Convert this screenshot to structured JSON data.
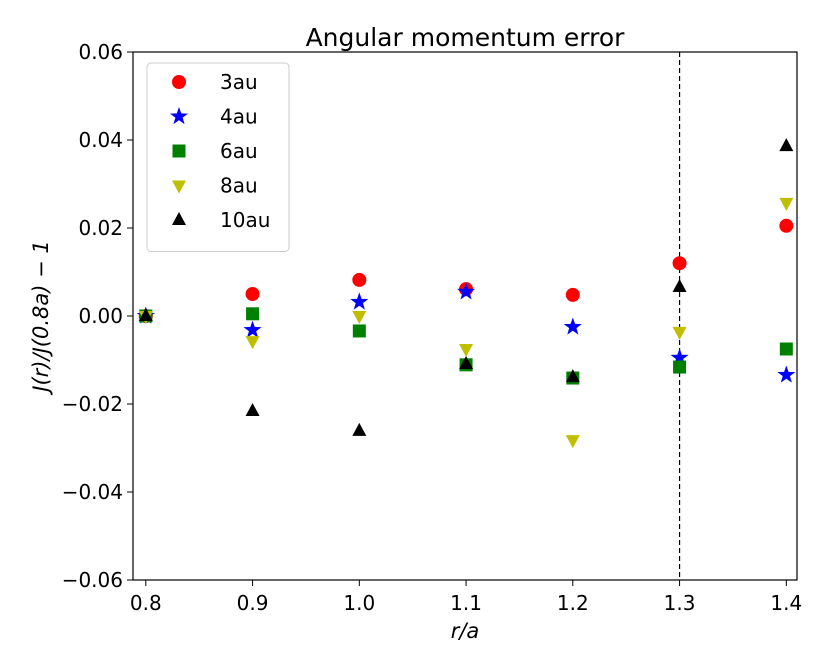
{
  "chart_data": {
    "type": "scatter",
    "title": "Angular momentum error",
    "xlabel": "r/a",
    "ylabel": "J(r)/J(0.8a) − 1",
    "x": [
      0.8,
      0.9,
      1.0,
      1.1,
      1.2,
      1.3,
      1.4
    ],
    "series": [
      {
        "name": "3au",
        "color": "#ff0000",
        "marker": "circle",
        "values": [
          0,
          0.005,
          0.0082,
          0.0061,
          0.0048,
          0.012,
          0.0205
        ]
      },
      {
        "name": "4au",
        "color": "#0000ff",
        "marker": "star",
        "values": [
          0,
          -0.0032,
          0.0032,
          0.0055,
          -0.0025,
          -0.0095,
          -0.0134
        ]
      },
      {
        "name": "6au",
        "color": "#008000",
        "marker": "square",
        "values": [
          0,
          0.0005,
          -0.0034,
          -0.0111,
          -0.0141,
          -0.0116,
          -0.0075
        ]
      },
      {
        "name": "8au",
        "color": "#bfbf00",
        "marker": "triangle-down",
        "values": [
          0,
          -0.0057,
          0,
          -0.0075,
          -0.0282,
          -0.0036,
          0.0257
        ]
      },
      {
        "name": "10au",
        "color": "#000000",
        "marker": "triangle-up",
        "values": [
          0,
          -0.0216,
          -0.0261,
          -0.0109,
          -0.0139,
          0.0066,
          0.0386
        ]
      }
    ],
    "vline": 1.3,
    "xlim": [
      0.788,
      1.41
    ],
    "ylim": [
      -0.06,
      0.06
    ],
    "xticks": [
      0.8,
      0.9,
      {
        "value": 1.0,
        "label": "1.0"
      },
      1.1,
      1.2,
      1.3,
      1.4
    ],
    "yticks": [
      {
        "value": -0.06,
        "label": "−0.06"
      },
      {
        "value": -0.04,
        "label": "−0.04"
      },
      {
        "value": -0.02,
        "label": "−0.02"
      },
      {
        "value": 0,
        "label": "0.00"
      },
      0.02,
      0.04,
      0.06
    ],
    "legend": "upper left",
    "grid": false
  }
}
